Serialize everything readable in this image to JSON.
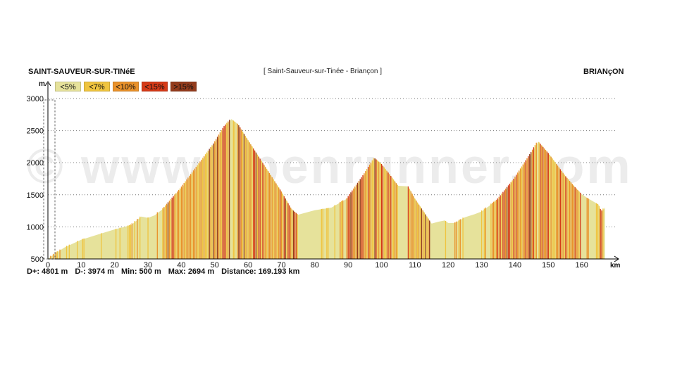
{
  "header": {
    "start_town": "SAINT-SAUVEUR-SUR-TINéE",
    "route": "[ Saint-Sauveur-sur-Tinée - Briançon ]",
    "end_town": "BRIANçON"
  },
  "watermark": "© www.openrunner.com",
  "legend": [
    {
      "label": "<5%",
      "color": "#e6e29b"
    },
    {
      "label": "<7%",
      "color": "#efc43f"
    },
    {
      "label": "<10%",
      "color": "#e9912a"
    },
    {
      "label": "<15%",
      "color": "#d53a17"
    },
    {
      "label": ">15%",
      "color": "#933b1c"
    }
  ],
  "stats": [
    {
      "label": "D+:",
      "value": "4801 m"
    },
    {
      "label": "D-:",
      "value": "3974 m"
    },
    {
      "label": "Min:",
      "value": "500 m"
    },
    {
      "label": "Max:",
      "value": "2694 m"
    },
    {
      "label": "Distance:",
      "value": "169.193 km"
    }
  ],
  "chart_data": {
    "type": "area",
    "xlabel": "km",
    "ylabel": "m",
    "xlim": [
      0,
      170
    ],
    "ylim": [
      500,
      3000
    ],
    "x_ticks": [
      0,
      10,
      20,
      30,
      40,
      50,
      60,
      70,
      80,
      90,
      100,
      110,
      120,
      130,
      140,
      150,
      160
    ],
    "y_ticks": [
      500,
      1000,
      1500,
      2000,
      2500,
      3000
    ],
    "grid": true,
    "x": [
      0,
      2,
      5,
      10,
      15,
      20,
      25,
      28,
      30,
      32,
      35,
      40,
      45,
      50,
      53,
      55,
      57,
      60,
      65,
      70,
      73,
      75,
      80,
      85,
      90,
      95,
      98,
      100,
      103,
      105,
      108,
      110,
      113,
      115,
      117,
      119,
      120,
      122,
      125,
      128,
      130,
      135,
      140,
      145,
      147,
      150,
      155,
      158,
      160,
      162,
      165,
      166,
      167
    ],
    "y": [
      500,
      580,
      680,
      800,
      880,
      960,
      1030,
      1160,
      1140,
      1180,
      1300,
      1600,
      1950,
      2300,
      2560,
      2680,
      2600,
      2350,
      1950,
      1550,
      1280,
      1190,
      1260,
      1300,
      1450,
      1820,
      2070,
      1980,
      1780,
      1640,
      1630,
      1440,
      1210,
      1050,
      1080,
      1100,
      1060,
      1060,
      1150,
      1200,
      1240,
      1430,
      1750,
      2150,
      2330,
      2150,
      1800,
      1620,
      1510,
      1440,
      1350,
      1230,
      1300
    ]
  }
}
